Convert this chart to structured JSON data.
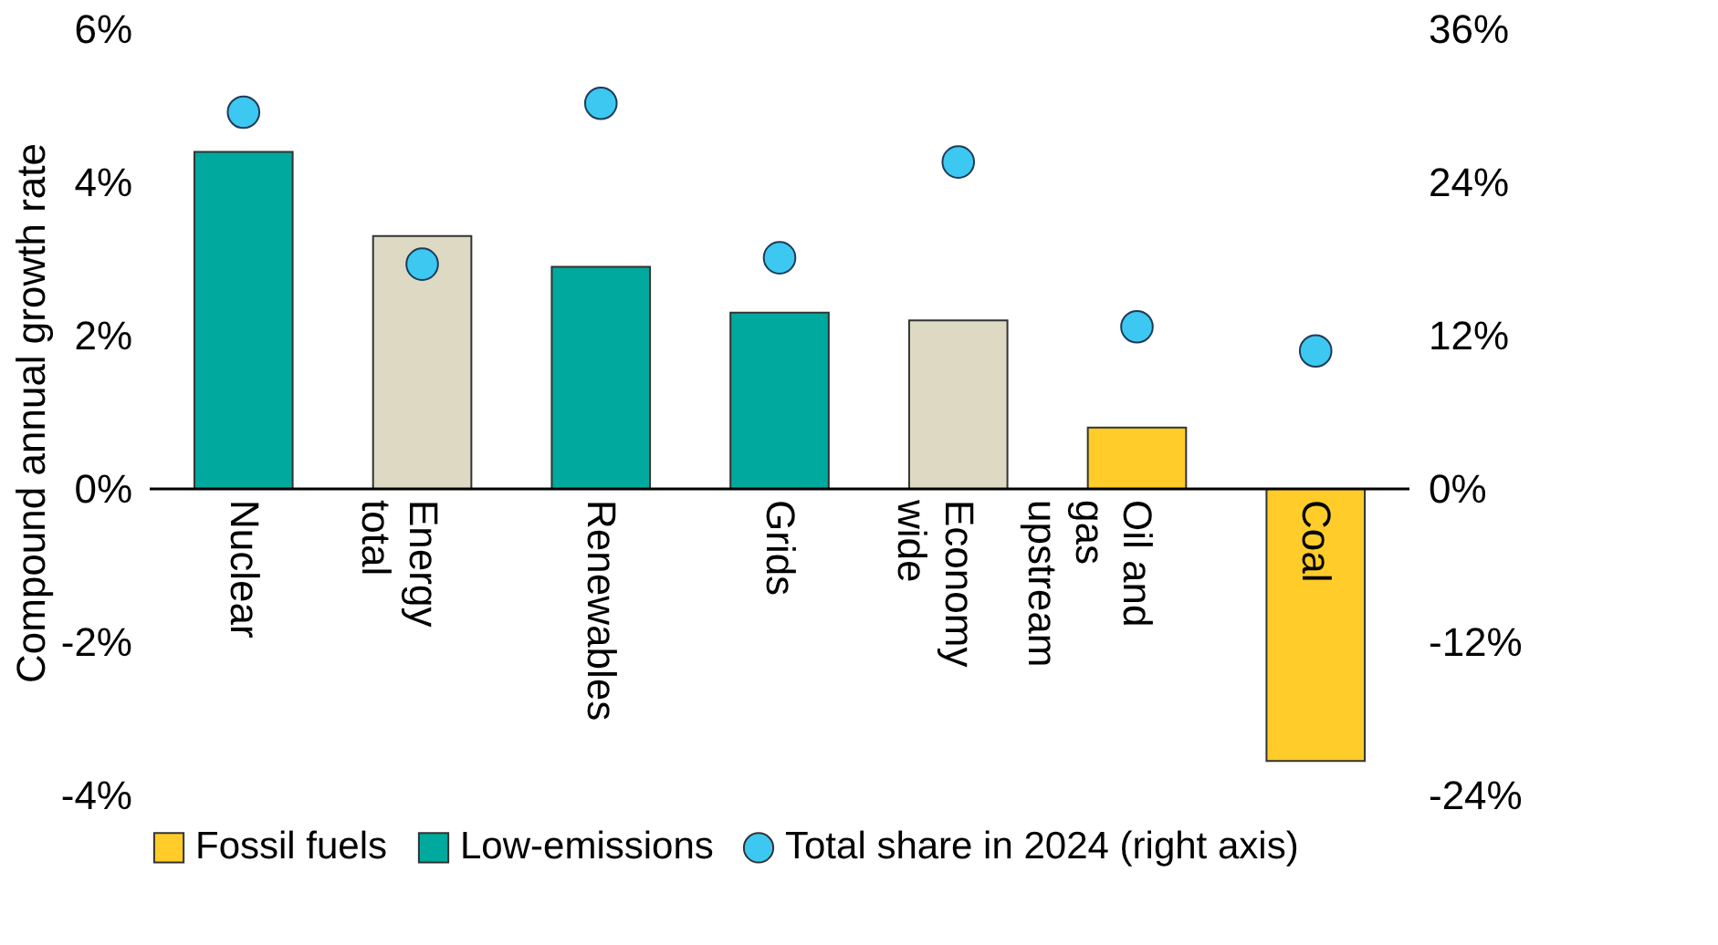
{
  "chart_data": {
    "type": "bar",
    "ylabel": "Compound annual growth rate",
    "categories": [
      "Nuclear",
      "Energy total",
      "Renewables",
      "Grids",
      "Economy wide",
      "Oil and gas upstream",
      "Coal"
    ],
    "series": [
      {
        "name": "Fossil fuels",
        "color": "#ffcc29",
        "values": [
          null,
          null,
          null,
          null,
          null,
          0.8,
          -3.55
        ]
      },
      {
        "name": "Low-emissions",
        "color": "#00a99d",
        "values": [
          4.4,
          null,
          2.9,
          2.3,
          null,
          null,
          null
        ]
      },
      {
        "color": "#ddd9c3",
        "values": [
          null,
          3.3,
          null,
          null,
          2.2,
          null,
          null
        ]
      },
      {
        "name": "Total share in 2024 (right axis)",
        "type": "scatter",
        "axis": "y2",
        "color": "#3cc8f0",
        "values": [
          29.5,
          17.6,
          30.2,
          18.1,
          25.6,
          12.7,
          10.8
        ]
      }
    ],
    "ylim": [
      -4,
      6
    ],
    "yticks": [
      {
        "value": -4,
        "label": "-4%"
      },
      {
        "value": -2,
        "label": "-2%"
      },
      {
        "value": 0,
        "label": "0%"
      },
      {
        "value": 2,
        "label": "2%"
      },
      {
        "value": 4,
        "label": "4%"
      },
      {
        "value": 6,
        "label": "6%"
      }
    ],
    "y2lim": [
      -24,
      36
    ],
    "y2ticks": [
      {
        "value": -24,
        "label": "-24%"
      },
      {
        "value": -12,
        "label": "-12%"
      },
      {
        "value": 0,
        "label": "0%"
      },
      {
        "value": 12,
        "label": "12%"
      },
      {
        "value": 24,
        "label": "24%"
      },
      {
        "value": 36,
        "label": "36%"
      }
    ],
    "grid": false,
    "legend": "bottom",
    "marker": "circle"
  }
}
